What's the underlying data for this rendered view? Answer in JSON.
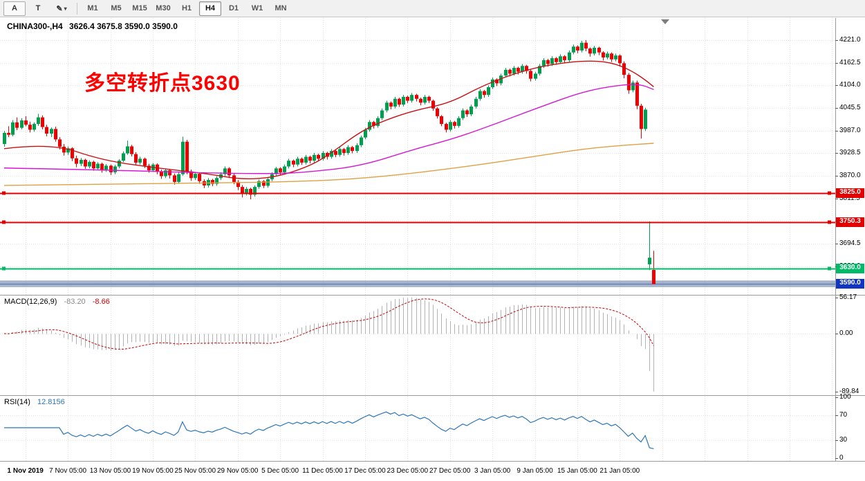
{
  "toolbar": {
    "tools": [
      {
        "id": "cursor-tool",
        "label": "A"
      },
      {
        "id": "text-tool",
        "label": "T"
      },
      {
        "id": "objects-tool",
        "label": "✎",
        "caret": "▾"
      }
    ],
    "timeframes": [
      {
        "label": "M1",
        "active": false
      },
      {
        "label": "M5",
        "active": false
      },
      {
        "label": "M15",
        "active": false
      },
      {
        "label": "M30",
        "active": false
      },
      {
        "label": "H1",
        "active": false
      },
      {
        "label": "H4",
        "active": true
      },
      {
        "label": "D1",
        "active": false
      },
      {
        "label": "W1",
        "active": false
      },
      {
        "label": "MN",
        "active": false
      }
    ]
  },
  "chart": {
    "symbol": "CHINA300-,H4",
    "ohlc": "3626.4 3675.8 3590.0 3590.0",
    "annotation": {
      "text": "多空转折点3630",
      "color": "#ff0000"
    },
    "price_axis_ticks": [
      "4221.0",
      "4162.5",
      "4104.0",
      "4045.5",
      "3987.0",
      "3928.5",
      "3870.0",
      "3811.5",
      "3753.0",
      "3694.5",
      "3636.0"
    ],
    "current_price": {
      "label": "3590.0",
      "value": 3590.0,
      "color": "#1135c0"
    }
  },
  "macd_panel": {
    "title": "MACD(12,26,9)",
    "main_value": "-83.20",
    "signal_value": "-8.66",
    "axis": [
      "56.17",
      "0.00",
      "-89.84"
    ]
  },
  "rsi_panel": {
    "title": "RSI(14)",
    "value": "12.8156",
    "axis": [
      "100",
      "70",
      "30",
      "0"
    ]
  },
  "time_axis": {
    "labels": [
      "1 Nov 2019",
      "7 Nov 05:00",
      "13 Nov 05:00",
      "19 Nov 05:00",
      "25 Nov 05:00",
      "29 Nov 05:00",
      "5 Dec 05:00",
      "11 Dec 05:00",
      "17 Dec 05:00",
      "23 Dec 05:00",
      "27 Dec 05:00",
      "3 Jan 05:00",
      "9 Jan 05:00",
      "15 Jan 05:00",
      "21 Jan 05:00"
    ]
  },
  "colors": {
    "up": "#009e4f",
    "down": "#ee0000",
    "macd_hist": "#b2b2b2",
    "macd_signal": "#cc0000",
    "rsi_line": "#2a76b9",
    "grid": "#e2e2e2"
  },
  "chart_data": {
    "type": "candlestick",
    "symbol": "CHINA300-",
    "timeframe": "H4",
    "ohlc_current": {
      "open": 3626.4,
      "high": 3675.8,
      "low": 3590.0,
      "close": 3590.0
    },
    "y_range": [
      3562,
      4278
    ],
    "candles": [
      [
        3952,
        3986,
        3945,
        3981
      ],
      [
        3981,
        3998,
        3970,
        3976
      ],
      [
        3976,
        4014,
        3972,
        4008
      ],
      [
        4008,
        4021,
        3988,
        3994
      ],
      [
        3994,
        4019,
        3990,
        4013
      ],
      [
        4013,
        4024,
        3998,
        4002
      ],
      [
        4002,
        4010,
        3982,
        3989
      ],
      [
        3989,
        4008,
        3984,
        4004
      ],
      [
        4004,
        4030,
        3999,
        4021
      ],
      [
        4021,
        4026,
        3990,
        3996
      ],
      [
        3996,
        4002,
        3972,
        3979
      ],
      [
        3979,
        3995,
        3970,
        3991
      ],
      [
        3991,
        3997,
        3958,
        3964
      ],
      [
        3964,
        3970,
        3938,
        3945
      ],
      [
        3945,
        3952,
        3922,
        3930
      ],
      [
        3930,
        3946,
        3924,
        3941
      ],
      [
        3941,
        3944,
        3908,
        3915
      ],
      [
        3915,
        3922,
        3892,
        3901
      ],
      [
        3901,
        3916,
        3895,
        3911
      ],
      [
        3911,
        3914,
        3888,
        3894
      ],
      [
        3894,
        3910,
        3889,
        3906
      ],
      [
        3906,
        3909,
        3883,
        3889
      ],
      [
        3889,
        3905,
        3884,
        3901
      ],
      [
        3901,
        3904,
        3878,
        3886
      ],
      [
        3886,
        3900,
        3880,
        3896
      ],
      [
        3896,
        3899,
        3872,
        3879
      ],
      [
        3879,
        3898,
        3874,
        3894
      ],
      [
        3894,
        3913,
        3889,
        3909
      ],
      [
        3909,
        3933,
        3905,
        3928
      ],
      [
        3928,
        3961,
        3924,
        3946
      ],
      [
        3946,
        3950,
        3920,
        3926
      ],
      [
        3926,
        3931,
        3898,
        3904
      ],
      [
        3904,
        3919,
        3899,
        3914
      ],
      [
        3914,
        3917,
        3890,
        3896
      ],
      [
        3896,
        3901,
        3878,
        3884
      ],
      [
        3884,
        3903,
        3880,
        3899
      ],
      [
        3899,
        3902,
        3874,
        3881
      ],
      [
        3881,
        3886,
        3862,
        3869
      ],
      [
        3869,
        3889,
        3864,
        3884
      ],
      [
        3884,
        3888,
        3863,
        3871
      ],
      [
        3871,
        3876,
        3847,
        3854
      ],
      [
        3854,
        3879,
        3849,
        3874
      ],
      [
        3874,
        3971,
        3870,
        3958
      ],
      [
        3958,
        3963,
        3874,
        3881
      ],
      [
        3881,
        3886,
        3857,
        3864
      ],
      [
        3864,
        3880,
        3859,
        3875
      ],
      [
        3875,
        3878,
        3849,
        3856
      ],
      [
        3856,
        3861,
        3838,
        3845
      ],
      [
        3845,
        3864,
        3840,
        3859
      ],
      [
        3859,
        3862,
        3843,
        3849
      ],
      [
        3849,
        3869,
        3844,
        3864
      ],
      [
        3864,
        3879,
        3859,
        3874
      ],
      [
        3874,
        3894,
        3869,
        3889
      ],
      [
        3889,
        3892,
        3864,
        3871
      ],
      [
        3871,
        3876,
        3848,
        3854
      ],
      [
        3854,
        3859,
        3833,
        3841
      ],
      [
        3841,
        3846,
        3814,
        3826
      ],
      [
        3826,
        3841,
        3819,
        3836
      ],
      [
        3836,
        3839,
        3809,
        3821
      ],
      [
        3821,
        3845,
        3816,
        3841
      ],
      [
        3841,
        3860,
        3836,
        3856
      ],
      [
        3856,
        3859,
        3838,
        3844
      ],
      [
        3844,
        3864,
        3839,
        3861
      ],
      [
        3861,
        3879,
        3856,
        3874
      ],
      [
        3874,
        3893,
        3869,
        3889
      ],
      [
        3889,
        3892,
        3872,
        3879
      ],
      [
        3879,
        3899,
        3874,
        3894
      ],
      [
        3894,
        3914,
        3889,
        3909
      ],
      [
        3909,
        3912,
        3892,
        3899
      ],
      [
        3899,
        3919,
        3894,
        3914
      ],
      [
        3914,
        3917,
        3898,
        3904
      ],
      [
        3904,
        3924,
        3899,
        3919
      ],
      [
        3919,
        3922,
        3902,
        3909
      ],
      [
        3909,
        3929,
        3904,
        3924
      ],
      [
        3924,
        3927,
        3908,
        3914
      ],
      [
        3914,
        3934,
        3909,
        3929
      ],
      [
        3929,
        3932,
        3912,
        3919
      ],
      [
        3919,
        3939,
        3914,
        3934
      ],
      [
        3934,
        3937,
        3918,
        3924
      ],
      [
        3924,
        3944,
        3919,
        3939
      ],
      [
        3939,
        3942,
        3922,
        3929
      ],
      [
        3929,
        3949,
        3924,
        3944
      ],
      [
        3944,
        3947,
        3928,
        3934
      ],
      [
        3934,
        3954,
        3929,
        3949
      ],
      [
        3949,
        3974,
        3944,
        3969
      ],
      [
        3969,
        3994,
        3964,
        3989
      ],
      [
        3989,
        4014,
        3984,
        4009
      ],
      [
        4009,
        4012,
        3992,
        3999
      ],
      [
        3999,
        4024,
        3994,
        4019
      ],
      [
        4019,
        4044,
        4014,
        4039
      ],
      [
        4039,
        4064,
        4034,
        4059
      ],
      [
        4059,
        4062,
        4042,
        4049
      ],
      [
        4049,
        4074,
        4044,
        4069
      ],
      [
        4069,
        4072,
        4048,
        4054
      ],
      [
        4054,
        4079,
        4049,
        4074
      ],
      [
        4074,
        4077,
        4058,
        4064
      ],
      [
        4064,
        4084,
        4059,
        4079
      ],
      [
        4079,
        4082,
        4062,
        4069
      ],
      [
        4069,
        4072,
        4052,
        4059
      ],
      [
        4059,
        4079,
        4054,
        4074
      ],
      [
        4074,
        4077,
        4058,
        4064
      ],
      [
        4064,
        4067,
        4038,
        4044
      ],
      [
        4044,
        4047,
        4018,
        4024
      ],
      [
        4024,
        4027,
        3998,
        4004
      ],
      [
        4004,
        4007,
        3982,
        3989
      ],
      [
        3989,
        4014,
        3984,
        4009
      ],
      [
        4009,
        4012,
        3992,
        3999
      ],
      [
        3999,
        4024,
        3994,
        4019
      ],
      [
        4019,
        4044,
        4014,
        4039
      ],
      [
        4039,
        4042,
        4022,
        4029
      ],
      [
        4029,
        4054,
        4024,
        4049
      ],
      [
        4049,
        4074,
        4044,
        4069
      ],
      [
        4069,
        4094,
        4064,
        4089
      ],
      [
        4089,
        4092,
        4072,
        4079
      ],
      [
        4079,
        4104,
        4074,
        4099
      ],
      [
        4099,
        4124,
        4094,
        4119
      ],
      [
        4119,
        4122,
        4102,
        4109
      ],
      [
        4109,
        4134,
        4104,
        4129
      ],
      [
        4129,
        4149,
        4124,
        4144
      ],
      [
        4144,
        4147,
        4127,
        4134
      ],
      [
        4134,
        4154,
        4129,
        4149
      ],
      [
        4149,
        4152,
        4132,
        4139
      ],
      [
        4139,
        4159,
        4134,
        4154
      ],
      [
        4154,
        4157,
        4134,
        4141
      ],
      [
        4141,
        4144,
        4114,
        4121
      ],
      [
        4121,
        4139,
        4116,
        4134
      ],
      [
        4134,
        4159,
        4129,
        4154
      ],
      [
        4154,
        4174,
        4149,
        4169
      ],
      [
        4169,
        4172,
        4152,
        4159
      ],
      [
        4159,
        4179,
        4154,
        4174
      ],
      [
        4174,
        4177,
        4157,
        4164
      ],
      [
        4164,
        4184,
        4159,
        4179
      ],
      [
        4179,
        4182,
        4162,
        4169
      ],
      [
        4169,
        4194,
        4164,
        4189
      ],
      [
        4189,
        4209,
        4184,
        4204
      ],
      [
        4204,
        4207,
        4187,
        4194
      ],
      [
        4194,
        4219,
        4189,
        4214
      ],
      [
        4214,
        4221,
        4192,
        4199
      ],
      [
        4199,
        4202,
        4178,
        4186
      ],
      [
        4186,
        4206,
        4181,
        4201
      ],
      [
        4201,
        4204,
        4182,
        4189
      ],
      [
        4189,
        4192,
        4168,
        4176
      ],
      [
        4176,
        4191,
        4171,
        4186
      ],
      [
        4186,
        4189,
        4164,
        4171
      ],
      [
        4171,
        4186,
        4166,
        4181
      ],
      [
        4181,
        4184,
        4152,
        4161
      ],
      [
        4161,
        4166,
        4122,
        4131
      ],
      [
        4131,
        4136,
        4082,
        4091
      ],
      [
        4091,
        4116,
        4086,
        4111
      ],
      [
        4111,
        4116,
        4042,
        4051
      ],
      [
        4051,
        4056,
        3966,
        3991
      ],
      [
        3991,
        4046,
        3986,
        4041
      ],
      [
        3641,
        3752,
        3626,
        3658
      ],
      [
        3626.4,
        3675.8,
        3590,
        3590
      ]
    ],
    "ma_lines": [
      {
        "name": "ma-fast",
        "color": "#c81010",
        "points": [
          [
            0,
            3940
          ],
          [
            11,
            3955
          ],
          [
            23,
            3910
          ],
          [
            36,
            3890
          ],
          [
            48,
            3875
          ],
          [
            56,
            3860
          ],
          [
            64,
            3866
          ],
          [
            72,
            3895
          ],
          [
            77,
            3928
          ],
          [
            84,
            3985
          ],
          [
            90,
            4015
          ],
          [
            97,
            4040
          ],
          [
            105,
            4058
          ],
          [
            113,
            4105
          ],
          [
            123,
            4145
          ],
          [
            132,
            4163
          ],
          [
            139,
            4168
          ],
          [
            144,
            4160
          ],
          [
            148,
            4140
          ],
          [
            151,
            4118
          ],
          [
            153,
            4100
          ]
        ]
      },
      {
        "name": "ma-mid",
        "color": "#d418d4",
        "points": [
          [
            0,
            3890
          ],
          [
            24,
            3885
          ],
          [
            48,
            3877
          ],
          [
            64,
            3875
          ],
          [
            72,
            3880
          ],
          [
            84,
            3895
          ],
          [
            97,
            3940
          ],
          [
            105,
            3963
          ],
          [
            113,
            3993
          ],
          [
            126,
            4047
          ],
          [
            137,
            4090
          ],
          [
            146,
            4106
          ],
          [
            150,
            4106
          ],
          [
            153,
            4093
          ]
        ]
      },
      {
        "name": "ma-slow",
        "color": "#dfa141",
        "points": [
          [
            0,
            3845
          ],
          [
            48,
            3850
          ],
          [
            72,
            3856
          ],
          [
            84,
            3863
          ],
          [
            97,
            3877
          ],
          [
            113,
            3900
          ],
          [
            126,
            3922
          ],
          [
            137,
            3940
          ],
          [
            146,
            3949
          ],
          [
            153,
            3954
          ]
        ]
      }
    ],
    "hlines": [
      {
        "value": 3825.0,
        "label": "3825.0",
        "color": "#e00000"
      },
      {
        "value": 3750.3,
        "label": "3750.3",
        "color": "#e00000"
      },
      {
        "value": 3630.0,
        "label": "3630.0",
        "color": "#00bb66"
      }
    ],
    "price_band": {
      "from": 3599,
      "to": 3582,
      "color": "rgba(90,115,160,0.55)"
    },
    "macd": {
      "params": "12,26,9",
      "main": -83.2,
      "signal": -8.66,
      "max": 56.17,
      "min": -89.84
    },
    "rsi": {
      "period": 14,
      "value": 12.8156,
      "levels": [
        70,
        30
      ]
    }
  }
}
